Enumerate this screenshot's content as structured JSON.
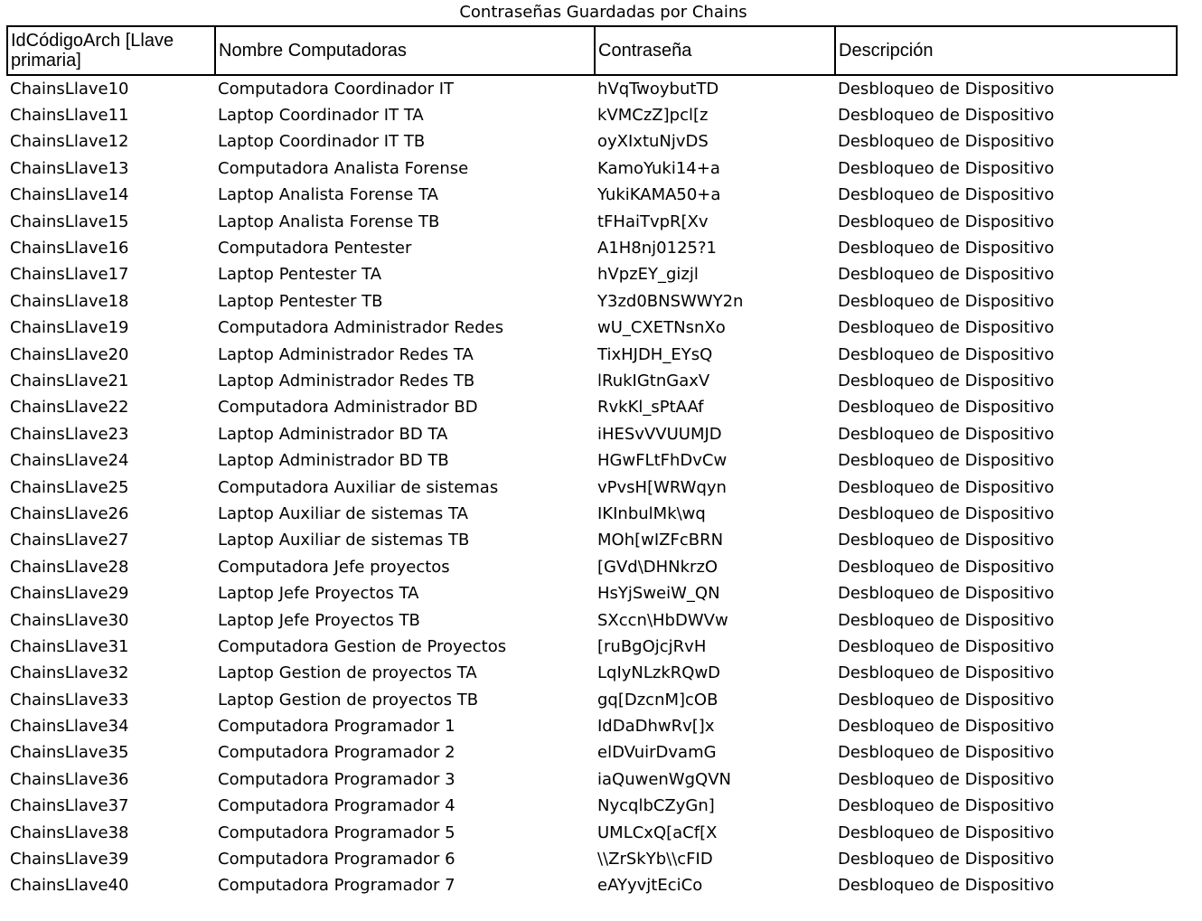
{
  "sheet": {
    "title": "Contraseñas Guardadas por Chains",
    "headers": {
      "id": "IdCódigoArch [Llave primaria]",
      "name": "Nombre Computadoras",
      "password": "Contraseña",
      "description": "Descripción"
    },
    "rows": [
      {
        "id": "ChainsLlave10",
        "name": "Computadora Coordinador IT",
        "password": "hVqTwoybutTD",
        "description": "Desbloqueo de Dispositivo"
      },
      {
        "id": "ChainsLlave11",
        "name": "Laptop Coordinador IT TA",
        "password": "kVMCzZ]pcl[z",
        "description": "Desbloqueo de Dispositivo"
      },
      {
        "id": "ChainsLlave12",
        "name": "Laptop Coordinador IT TB",
        "password": "oyXIxtuNjvDS",
        "description": "Desbloqueo de Dispositivo"
      },
      {
        "id": "ChainsLlave13",
        "name": "Computadora Analista Forense",
        "password": "KamoYuki14+a",
        "description": "Desbloqueo de Dispositivo"
      },
      {
        "id": "ChainsLlave14",
        "name": "Laptop Analista Forense TA",
        "password": "YukiKAMA50+a",
        "description": "Desbloqueo de Dispositivo"
      },
      {
        "id": "ChainsLlave15",
        "name": "Laptop Analista Forense TB",
        "password": "tFHaiTvpR[Xv",
        "description": "Desbloqueo de Dispositivo"
      },
      {
        "id": "ChainsLlave16",
        "name": "Computadora Pentester",
        "password": "A1H8nj0125?1",
        "description": "Desbloqueo de Dispositivo"
      },
      {
        "id": "ChainsLlave17",
        "name": "Laptop Pentester TA",
        "password": "hVpzEY_gizjl",
        "description": "Desbloqueo de Dispositivo"
      },
      {
        "id": "ChainsLlave18",
        "name": "Laptop Pentester TB",
        "password": "Y3zd0BNSWWY2n",
        "description": "Desbloqueo de Dispositivo"
      },
      {
        "id": "ChainsLlave19",
        "name": "Computadora Administrador Redes",
        "password": "wU_CXETNsnXo",
        "description": "Desbloqueo de Dispositivo"
      },
      {
        "id": "ChainsLlave20",
        "name": "Laptop Administrador Redes TA",
        "password": "TixHJDH_EYsQ",
        "description": "Desbloqueo de Dispositivo"
      },
      {
        "id": "ChainsLlave21",
        "name": "Laptop Administrador Redes TB",
        "password": "lRukIGtnGaxV",
        "description": "Desbloqueo de Dispositivo"
      },
      {
        "id": "ChainsLlave22",
        "name": "Computadora Administrador BD",
        "password": "RvkKl_sPtAAf",
        "description": "Desbloqueo de Dispositivo"
      },
      {
        "id": "ChainsLlave23",
        "name": "Laptop Administrador BD TA",
        "password": "iHESvVVUUMJD",
        "description": "Desbloqueo de Dispositivo"
      },
      {
        "id": "ChainsLlave24",
        "name": "Laptop Administrador BD TB",
        "password": "HGwFLtFhDvCw",
        "description": "Desbloqueo de Dispositivo"
      },
      {
        "id": "ChainsLlave25",
        "name": "Computadora Auxiliar de sistemas",
        "password": "vPvsH[WRWqyn",
        "description": "Desbloqueo de Dispositivo"
      },
      {
        "id": "ChainsLlave26",
        "name": "Laptop Auxiliar de sistemas TA",
        "password": "IKInbulMk\\wq",
        "description": "Desbloqueo de Dispositivo"
      },
      {
        "id": "ChainsLlave27",
        "name": "Laptop Auxiliar de sistemas TB",
        "password": "MOh[wIZFcBRN",
        "description": "Desbloqueo de Dispositivo"
      },
      {
        "id": "ChainsLlave28",
        "name": "Computadora Jefe proyectos",
        "password": "[GVd\\DHNkrzO",
        "description": "Desbloqueo de Dispositivo"
      },
      {
        "id": "ChainsLlave29",
        "name": "Laptop Jefe Proyectos TA",
        "password": "HsYjSweiW_QN",
        "description": "Desbloqueo de Dispositivo"
      },
      {
        "id": "ChainsLlave30",
        "name": "Laptop Jefe Proyectos TB",
        "password": "SXccn\\HbDWVw",
        "description": "Desbloqueo de Dispositivo"
      },
      {
        "id": "ChainsLlave31",
        "name": "Computadora Gestion de Proyectos",
        "password": "[ruBgOjcjRvH",
        "description": "Desbloqueo de Dispositivo"
      },
      {
        "id": "ChainsLlave32",
        "name": "Laptop Gestion de proyectos TA",
        "password": "LqIyNLzkRQwD",
        "description": "Desbloqueo de Dispositivo"
      },
      {
        "id": "ChainsLlave33",
        "name": "Laptop Gestion de proyectos TB",
        "password": "gq[DzcnM]cOB",
        "description": "Desbloqueo de Dispositivo"
      },
      {
        "id": "ChainsLlave34",
        "name": "Computadora Programador 1",
        "password": "IdDaDhwRv[]x",
        "description": "Desbloqueo de Dispositivo"
      },
      {
        "id": "ChainsLlave35",
        "name": "Computadora Programador 2",
        "password": "elDVuirDvamG",
        "description": "Desbloqueo de Dispositivo"
      },
      {
        "id": "ChainsLlave36",
        "name": "Computadora Programador 3",
        "password": "iaQuwenWgQVN",
        "description": "Desbloqueo de Dispositivo"
      },
      {
        "id": "ChainsLlave37",
        "name": "Computadora Programador 4",
        "password": "NycqlbCZyGn]",
        "description": "Desbloqueo de Dispositivo"
      },
      {
        "id": "ChainsLlave38",
        "name": "Computadora Programador 5",
        "password": "UMLCxQ[aCf[X",
        "description": "Desbloqueo de Dispositivo"
      },
      {
        "id": "ChainsLlave39",
        "name": "Computadora Programador 6",
        "password": "\\\\ZrSkYb\\\\cFID",
        "description": "Desbloqueo de Dispositivo"
      },
      {
        "id": "ChainsLlave40",
        "name": "Computadora Programador 7",
        "password": "eAYyvjtEciCo",
        "description": "Desbloqueo de Dispositivo"
      }
    ]
  }
}
